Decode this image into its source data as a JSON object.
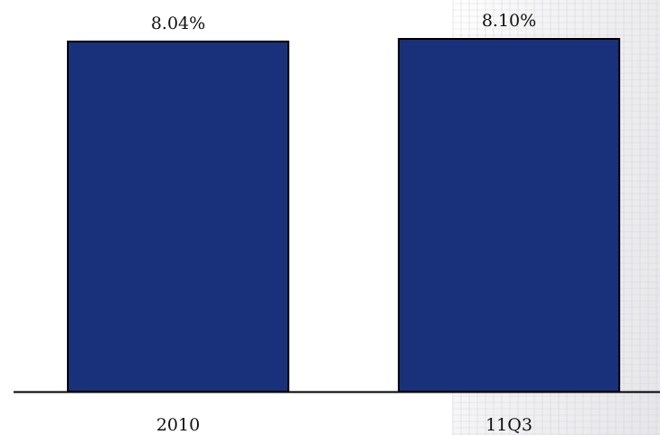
{
  "chart_data": {
    "type": "bar",
    "categories": [
      "2010",
      "11Q3"
    ],
    "values": [
      8.04,
      8.1
    ],
    "data_labels": [
      "8.04%",
      "8.10%"
    ],
    "title": "",
    "xlabel": "",
    "ylabel": "",
    "ylim": [
      0,
      8.1
    ],
    "grid": false,
    "legend": "none",
    "colors": {
      "bar": "#18317a",
      "bar_border": "#000000",
      "axis": "#000000"
    }
  }
}
